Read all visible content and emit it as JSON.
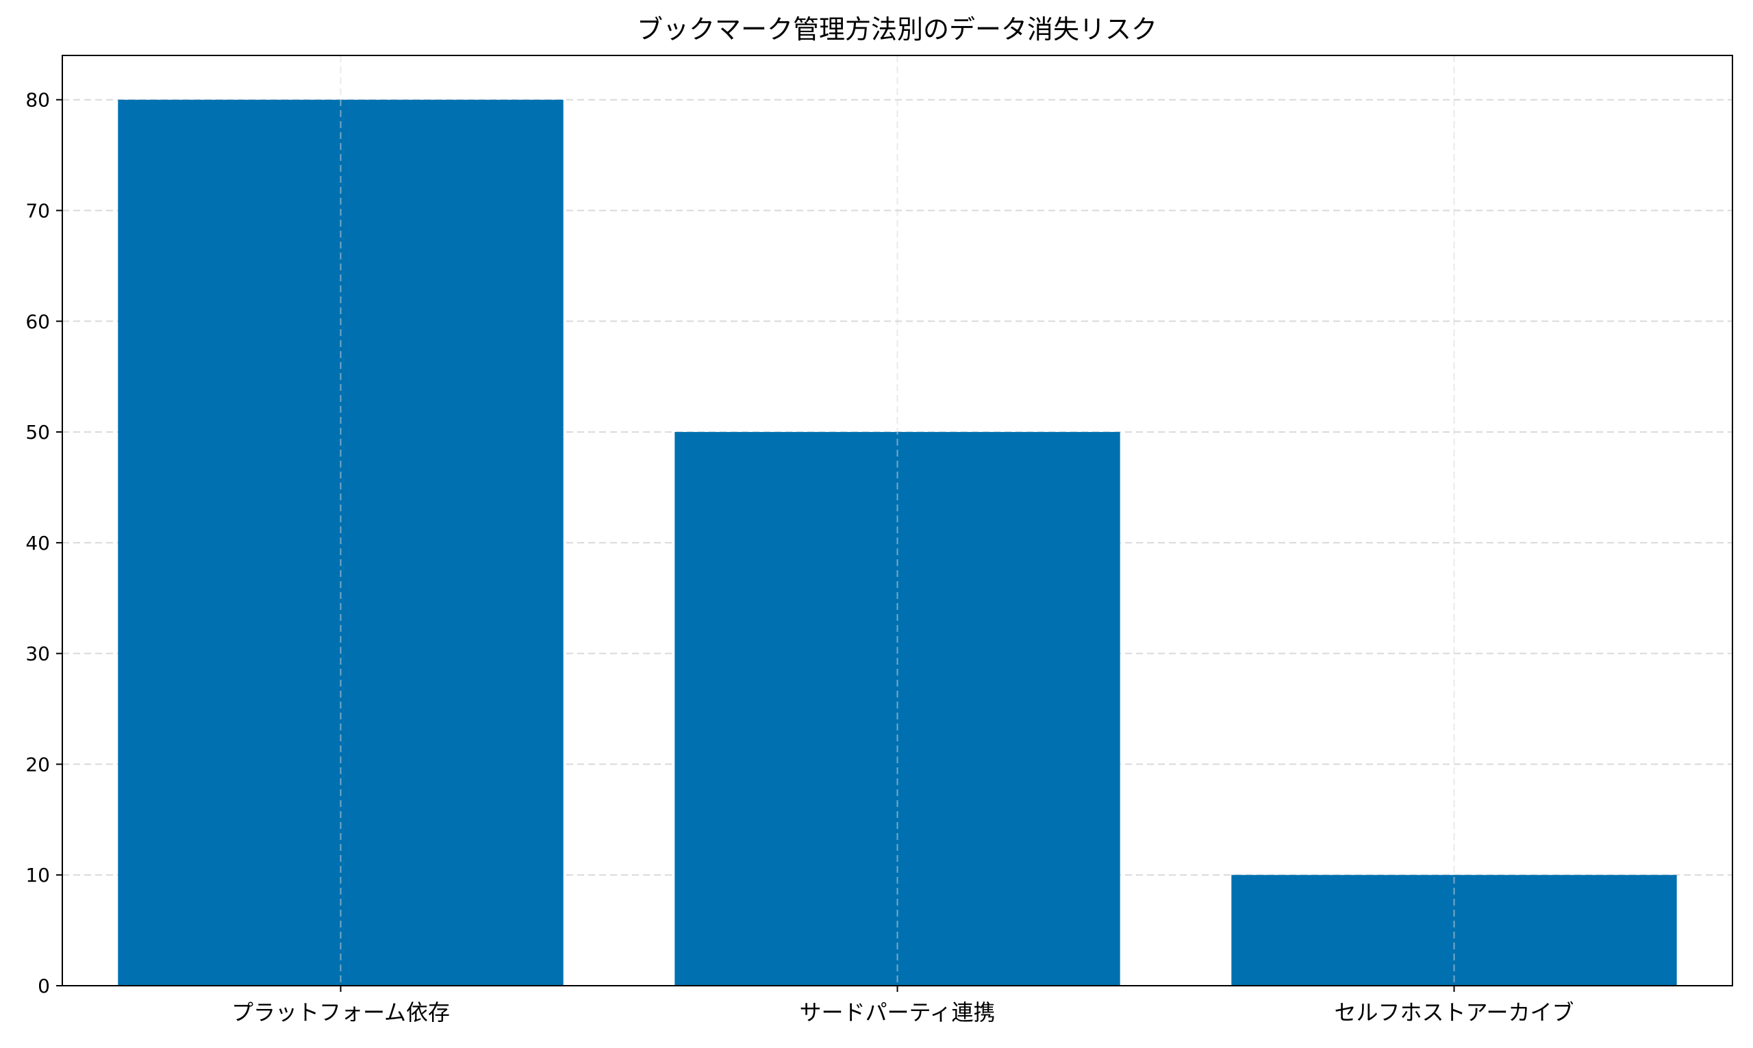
{
  "chart_data": {
    "type": "bar",
    "title": "ブックマーク管理方法別のデータ消失リスク",
    "xlabel": "",
    "ylabel": "",
    "categories": [
      "プラットフォーム依存",
      "サードパーティ連携",
      "セルフホストアーカイブ"
    ],
    "values": [
      80,
      50,
      10
    ],
    "ylim": [
      0,
      84
    ],
    "yticks": [
      0,
      10,
      20,
      30,
      40,
      50,
      60,
      70,
      80
    ],
    "ytick_labels": [
      "0",
      "10",
      "20",
      "30",
      "40",
      "50",
      "60",
      "70",
      "80"
    ],
    "grid": true,
    "bar_color": "#0070b0",
    "grid_color": "#d9d9d9"
  }
}
